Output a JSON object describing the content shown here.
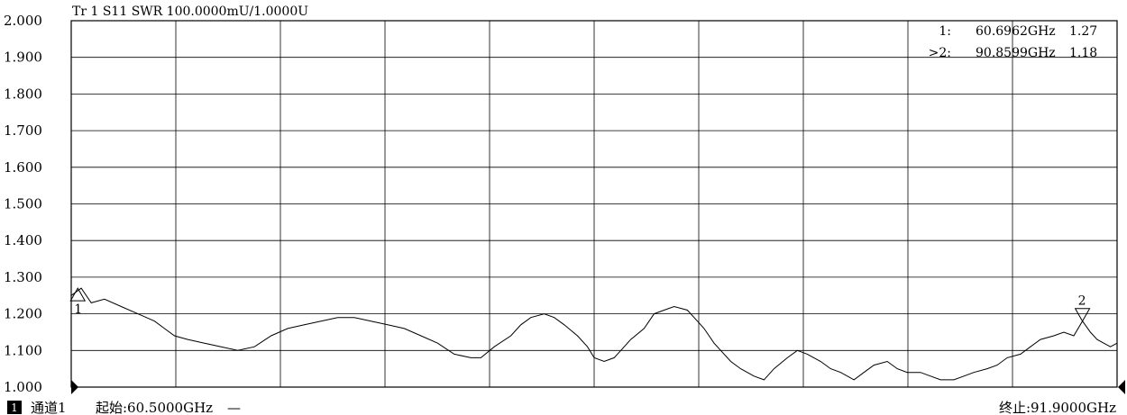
{
  "trace_header": "Tr 1  S11 SWR 100.0000mU/1.0000U",
  "markers": [
    {
      "label": "1",
      "prefix": "1:",
      "freq": "60.6962GHz",
      "value": "1.27",
      "x_ghz": 60.6962,
      "y": 1.27,
      "active": false
    },
    {
      "label": "2",
      "prefix": ">2:",
      "freq": "90.8599GHz",
      "value": "1.18",
      "x_ghz": 90.8599,
      "y": 1.18,
      "active": true
    }
  ],
  "footer": {
    "channel_number": "1",
    "channel": "通道1",
    "start": "起始:60.5000GHz",
    "dash": "—",
    "stop": "终止:91.9000GHz"
  },
  "colors": {
    "background": "#ffffff",
    "trace": "#000000",
    "grid": "#000000"
  },
  "chart_data": {
    "type": "line",
    "title": "Tr 1  S11 SWR 100.0000mU/1.0000U",
    "xlabel": "",
    "ylabel": "",
    "xlim": [
      60.5,
      91.9
    ],
    "ylim": [
      1.0,
      2.0
    ],
    "x_divisions": 10,
    "ytick_labels": [
      "2.000",
      "1.900",
      "1.800",
      "1.700",
      "1.600",
      "1.500",
      "1.400",
      "1.300",
      "1.200",
      "1.100",
      "1.000"
    ],
    "grid": true,
    "series": [
      {
        "x": [
          60.5,
          60.8,
          61.1,
          61.5,
          62.0,
          62.5,
          63.0,
          63.3,
          63.6,
          64.0,
          64.5,
          65.0,
          65.5,
          66.0,
          66.5,
          67.0,
          67.5,
          68.0,
          68.5,
          69.0,
          69.5,
          70.0,
          70.5,
          71.0,
          71.5,
          72.0,
          72.5,
          72.8,
          73.2,
          73.7,
          74.0,
          74.3,
          74.7,
          75.0,
          75.3,
          75.7,
          76.0,
          76.2,
          76.5,
          76.8,
          77.0,
          77.3,
          77.7,
          78.0,
          78.3,
          78.6,
          79.0,
          79.3,
          79.5,
          79.8,
          80.0,
          80.3,
          80.6,
          81.0,
          81.3,
          81.6,
          82.0,
          82.3,
          82.6,
          83.0,
          83.3,
          83.6,
          84.0,
          84.3,
          84.6,
          85.0,
          85.3,
          85.6,
          86.0,
          86.3,
          86.6,
          87.0,
          87.3,
          87.6,
          88.0,
          88.3,
          88.6,
          89.0,
          89.3,
          89.6,
          90.0,
          90.3,
          90.6,
          90.86,
          91.1,
          91.3,
          91.5,
          91.7,
          91.9
        ],
        "y": [
          1.25,
          1.27,
          1.23,
          1.24,
          1.22,
          1.2,
          1.18,
          1.16,
          1.14,
          1.13,
          1.12,
          1.11,
          1.1,
          1.11,
          1.14,
          1.16,
          1.17,
          1.18,
          1.19,
          1.19,
          1.18,
          1.17,
          1.16,
          1.14,
          1.12,
          1.09,
          1.08,
          1.08,
          1.11,
          1.14,
          1.17,
          1.19,
          1.2,
          1.19,
          1.17,
          1.14,
          1.11,
          1.08,
          1.07,
          1.08,
          1.1,
          1.13,
          1.16,
          1.2,
          1.21,
          1.22,
          1.21,
          1.18,
          1.16,
          1.12,
          1.1,
          1.07,
          1.05,
          1.03,
          1.02,
          1.05,
          1.08,
          1.1,
          1.09,
          1.07,
          1.05,
          1.04,
          1.02,
          1.04,
          1.06,
          1.07,
          1.05,
          1.04,
          1.04,
          1.03,
          1.02,
          1.02,
          1.03,
          1.04,
          1.05,
          1.06,
          1.08,
          1.09,
          1.11,
          1.13,
          1.14,
          1.15,
          1.14,
          1.18,
          1.15,
          1.13,
          1.12,
          1.11,
          1.12
        ]
      }
    ],
    "annotations": [
      "1",
      "2"
    ]
  }
}
